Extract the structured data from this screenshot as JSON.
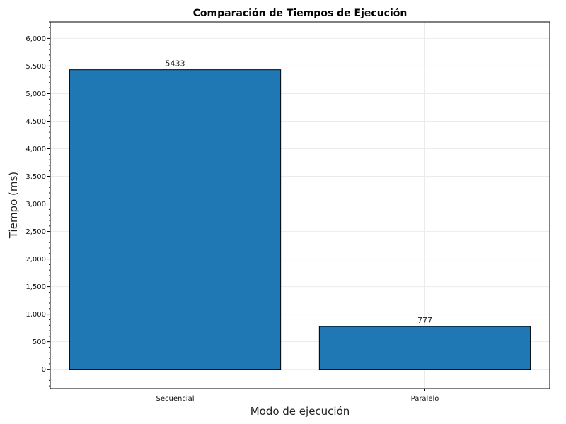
{
  "chart_data": {
    "type": "bar",
    "title": "Comparación de Tiempos de Ejecución",
    "xlabel": "Modo de ejecución",
    "ylabel": "Tiempo (ms)",
    "categories": [
      "Secuencial",
      "Paralelo"
    ],
    "values": [
      5433,
      777
    ],
    "data_labels": [
      "5433",
      "777"
    ],
    "ylim": [
      -350,
      6300
    ],
    "yticks": [
      0,
      500,
      1000,
      1500,
      2000,
      2500,
      3000,
      3500,
      4000,
      4500,
      5000,
      5500,
      6000
    ],
    "ytick_labels": [
      "0",
      "500",
      "1,000",
      "1,500",
      "2,000",
      "2,500",
      "3,000",
      "3,500",
      "4,000",
      "4,500",
      "5,000",
      "5,500",
      "6,000"
    ],
    "minor_tick_step": 100,
    "grid": true,
    "bar_color": "#1f77b4",
    "bar_edge_color": "#000000"
  }
}
